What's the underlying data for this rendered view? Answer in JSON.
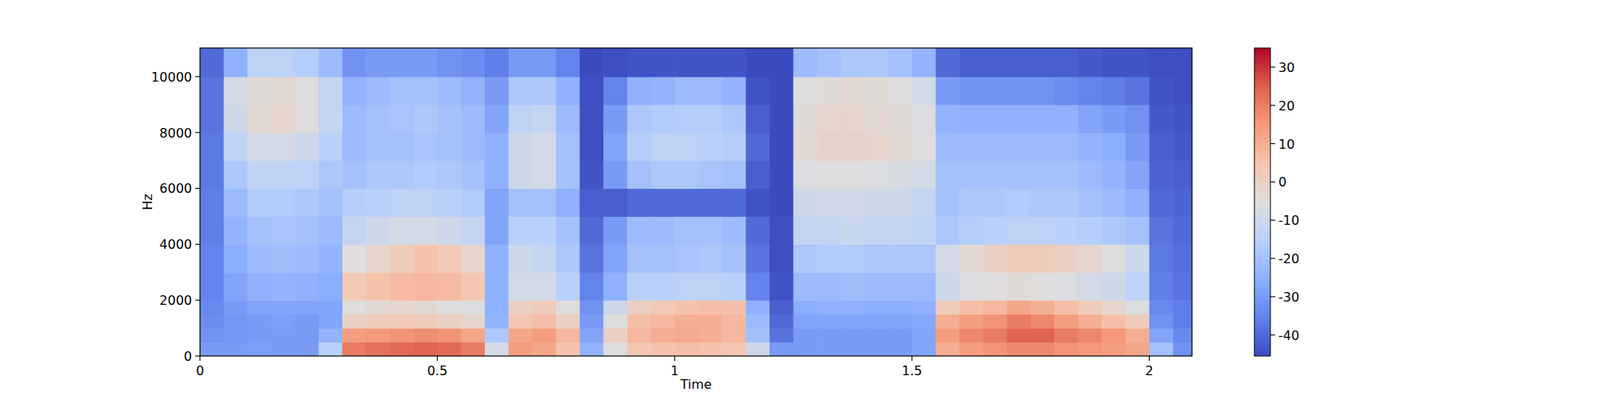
{
  "chart_data": {
    "type": "heatmap",
    "x_label": "Time",
    "y_label": "Hz",
    "xlim": [
      0,
      2.09
    ],
    "ylim": [
      0,
      11025
    ],
    "xticks": [
      0,
      0.5,
      1,
      1.5,
      2
    ],
    "yticks": [
      0,
      2000,
      4000,
      6000,
      8000,
      10000
    ],
    "x_edges": [
      0,
      0.05,
      0.1,
      0.15,
      0.2,
      0.25,
      0.3,
      0.35,
      0.4,
      0.45,
      0.5,
      0.55,
      0.6,
      0.65,
      0.7,
      0.75,
      0.8,
      0.85,
      0.9,
      0.95,
      1,
      1.05,
      1.1,
      1.15,
      1.2,
      1.25,
      1.3,
      1.35,
      1.4,
      1.45,
      1.5,
      1.55,
      1.6,
      1.65,
      1.7,
      1.75,
      1.8,
      1.85,
      1.9,
      1.95,
      2,
      2.05,
      2.1
    ],
    "y_edges": [
      0,
      500,
      1000,
      1500,
      2000,
      3000,
      4000,
      5000,
      6000,
      7000,
      8000,
      9000,
      10000,
      11025
    ],
    "values": [
      [
        -30,
        -32,
        -33,
        -34,
        -35,
        -35,
        -36,
        -36,
        -37,
        -37,
        -38,
        -38,
        -40
      ],
      [
        -30,
        -31,
        -31,
        -30,
        -28,
        -26,
        -24,
        -22,
        -18,
        -14,
        -10,
        -8,
        -25
      ],
      [
        -29,
        -30,
        -30,
        -28,
        -25,
        -22,
        -20,
        -17,
        -13,
        -8,
        -3,
        -4,
        -14
      ],
      [
        -30,
        -30,
        -29,
        -28,
        -24,
        -21,
        -19,
        -17,
        -13,
        -8,
        -2,
        -3,
        -14
      ],
      [
        -30,
        -30,
        -30,
        -28,
        -25,
        -22,
        -20,
        -18,
        -14,
        -10,
        -5,
        -5,
        -16
      ],
      [
        -15,
        -24,
        -28,
        -28,
        -26,
        -24,
        -22,
        -20,
        -18,
        -15,
        -12,
        -12,
        -22
      ],
      [
        20,
        14,
        0,
        -5,
        3,
        -5,
        -12,
        -16,
        -20,
        -22,
        -22,
        -24,
        -32
      ],
      [
        22,
        15,
        2,
        -3,
        5,
        -2,
        -10,
        -15,
        -18,
        -20,
        -20,
        -22,
        -30
      ],
      [
        23,
        16,
        3,
        -2,
        7,
        2,
        -8,
        -14,
        -18,
        -20,
        -19,
        -20,
        -30
      ],
      [
        24,
        17,
        2,
        -3,
        8,
        5,
        -8,
        -14,
        -17,
        -19,
        -18,
        -20,
        -30
      ],
      [
        23,
        16,
        0,
        -5,
        7,
        3,
        -10,
        -15,
        -18,
        -20,
        -20,
        -22,
        -32
      ],
      [
        20,
        12,
        -2,
        -6,
        4,
        -2,
        -12,
        -17,
        -20,
        -22,
        -22,
        -24,
        -33
      ],
      [
        -8,
        -18,
        -24,
        -25,
        -25,
        -25,
        -28,
        -28,
        -25,
        -25,
        -28,
        -30,
        -36
      ],
      [
        14,
        12,
        4,
        0,
        -8,
        -10,
        -15,
        -20,
        -10,
        -10,
        -14,
        -18,
        -30
      ],
      [
        12,
        14,
        6,
        2,
        -8,
        -12,
        -15,
        -20,
        -8,
        -8,
        -12,
        -18,
        -30
      ],
      [
        5,
        8,
        0,
        -5,
        -15,
        -18,
        -20,
        -25,
        -20,
        -20,
        -22,
        -25,
        -35
      ],
      [
        -24,
        -28,
        -30,
        -32,
        -35,
        -38,
        -40,
        -42,
        -44,
        -45,
        -45,
        -45,
        -46
      ],
      [
        -5,
        0,
        -5,
        -10,
        -25,
        -28,
        -30,
        -42,
        -30,
        -28,
        -30,
        -35,
        -45
      ],
      [
        4,
        8,
        6,
        0,
        -15,
        -20,
        -22,
        -40,
        -20,
        -16,
        -18,
        -25,
        -44
      ],
      [
        5,
        10,
        8,
        3,
        -15,
        -20,
        -22,
        -40,
        -18,
        -14,
        -17,
        -24,
        -44
      ],
      [
        6,
        11,
        10,
        5,
        -14,
        -19,
        -20,
        -40,
        -18,
        -14,
        -16,
        -22,
        -44
      ],
      [
        5,
        10,
        10,
        6,
        -14,
        -18,
        -20,
        -40,
        -19,
        -15,
        -16,
        -22,
        -44
      ],
      [
        4,
        8,
        8,
        6,
        -15,
        -20,
        -22,
        -40,
        -20,
        -16,
        -18,
        -24,
        -44
      ],
      [
        -10,
        -20,
        -22,
        -25,
        -35,
        -38,
        -40,
        -44,
        -42,
        -40,
        -42,
        -44,
        -46
      ],
      [
        -30,
        -38,
        -40,
        -42,
        -44,
        -45,
        -45,
        -46,
        -46,
        -46,
        -46,
        -46,
        -46
      ],
      [
        -30,
        -30,
        -28,
        -26,
        -22,
        -18,
        -12,
        -10,
        -6,
        -3,
        -4,
        -5,
        -22
      ],
      [
        -30,
        -30,
        -28,
        -25,
        -22,
        -17,
        -12,
        -9,
        -5,
        -1,
        -2,
        -4,
        -20
      ],
      [
        -30,
        -30,
        -28,
        -25,
        -21,
        -17,
        -11,
        -9,
        -5,
        -1,
        -2,
        -3,
        -18
      ],
      [
        -30,
        -30,
        -28,
        -26,
        -22,
        -18,
        -12,
        -10,
        -6,
        -2,
        -3,
        -4,
        -18
      ],
      [
        -30,
        -30,
        -28,
        -26,
        -22,
        -18,
        -12,
        -10,
        -7,
        -3,
        -4,
        -5,
        -20
      ],
      [
        -28,
        -28,
        -27,
        -25,
        -22,
        -18,
        -13,
        -12,
        -8,
        -5,
        -6,
        -8,
        -24
      ],
      [
        10,
        14,
        10,
        2,
        -10,
        -8,
        -18,
        -20,
        -20,
        -22,
        -24,
        -30,
        -40
      ],
      [
        14,
        18,
        14,
        6,
        -6,
        -3,
        -16,
        -18,
        -20,
        -22,
        -25,
        -32,
        -42
      ],
      [
        16,
        20,
        16,
        8,
        -5,
        0,
        -15,
        -18,
        -20,
        -22,
        -25,
        -32,
        -42
      ],
      [
        18,
        24,
        20,
        12,
        -4,
        2,
        -14,
        -17,
        -20,
        -22,
        -25,
        -32,
        -42
      ],
      [
        18,
        24,
        18,
        10,
        -5,
        2,
        -14,
        -18,
        -20,
        -22,
        -25,
        -32,
        -42
      ],
      [
        16,
        20,
        14,
        6,
        -6,
        0,
        -15,
        -18,
        -20,
        -22,
        -25,
        -33,
        -42
      ],
      [
        15,
        18,
        10,
        2,
        -8,
        -2,
        -16,
        -20,
        -22,
        -24,
        -28,
        -35,
        -43
      ],
      [
        14,
        15,
        6,
        -2,
        -10,
        -5,
        -18,
        -22,
        -24,
        -26,
        -30,
        -36,
        -44
      ],
      [
        12,
        10,
        2,
        -6,
        -14,
        -10,
        -20,
        -25,
        -28,
        -30,
        -32,
        -38,
        -44
      ],
      [
        -20,
        -28,
        -32,
        -34,
        -36,
        -37,
        -38,
        -40,
        -41,
        -42,
        -43,
        -44,
        -45
      ],
      [
        -32,
        -34,
        -36,
        -36,
        -38,
        -39,
        -40,
        -41,
        -42,
        -43,
        -44,
        -45,
        -45
      ]
    ],
    "color_range": [
      -45.5,
      35
    ],
    "color_ticks": [
      -40,
      -30,
      -20,
      -10,
      0,
      10,
      20,
      30
    ]
  }
}
